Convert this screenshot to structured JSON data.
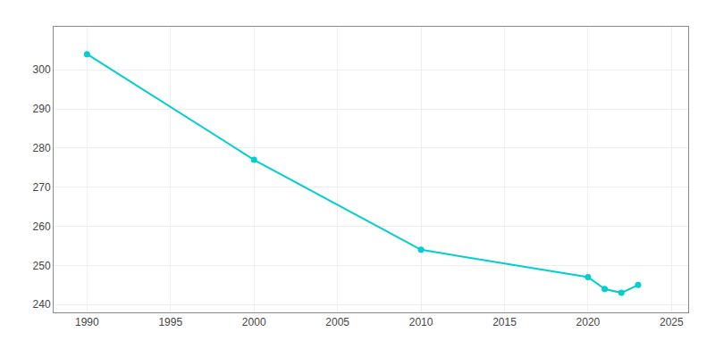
{
  "chart_data": {
    "type": "line",
    "x": [
      1990,
      2000,
      2010,
      2020,
      2021,
      2022,
      2023
    ],
    "values": [
      304,
      277,
      254,
      247,
      244,
      243,
      245
    ],
    "color": "#00CED1",
    "marker": "circle",
    "xlim": [
      1988,
      2026
    ],
    "ylim": [
      238,
      311
    ],
    "xticks": [
      1990,
      1995,
      2000,
      2005,
      2010,
      2015,
      2020,
      2025
    ],
    "yticks": [
      240,
      250,
      260,
      270,
      280,
      290,
      300
    ],
    "grid": true
  }
}
